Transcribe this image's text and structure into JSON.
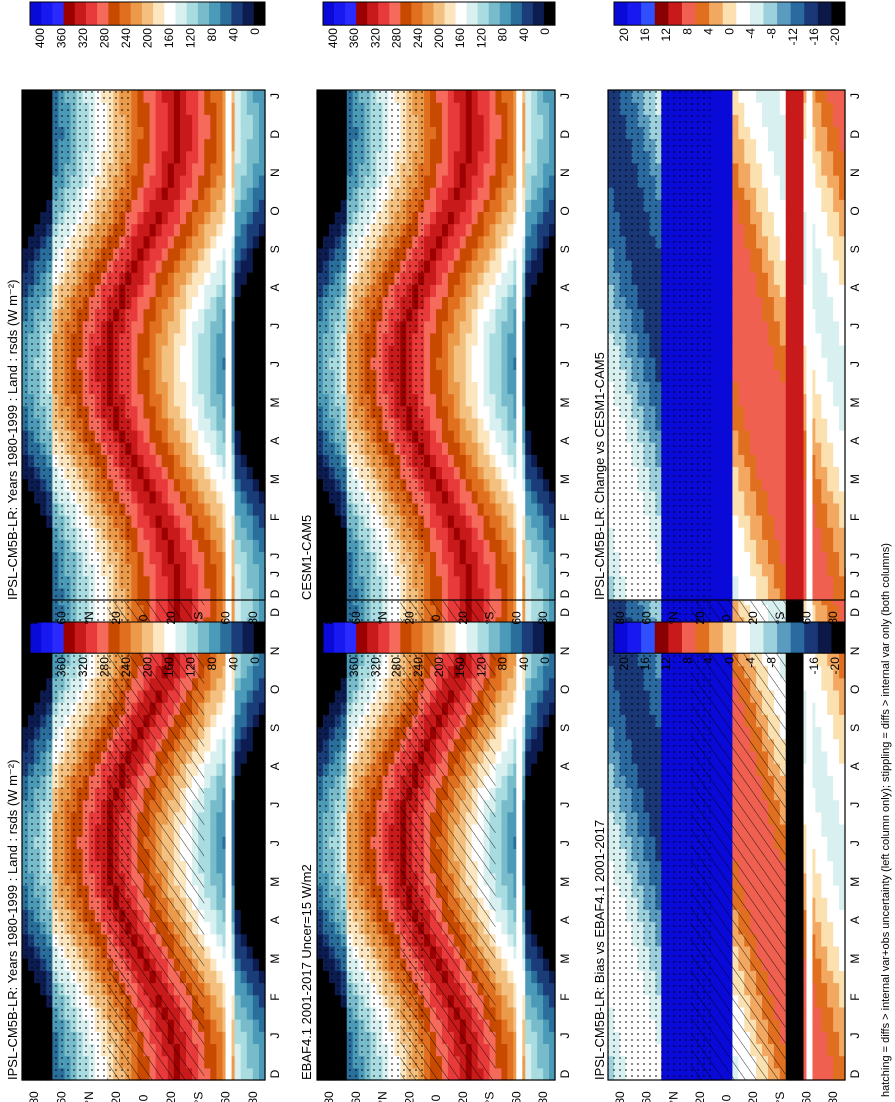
{
  "footnote": "hatching = diffs > internal var+obs uncertainty (left column only); stippling = diffs > internal var only (both columns)",
  "months": [
    "D",
    "J",
    "F",
    "M",
    "A",
    "M",
    "J",
    "J",
    "A",
    "S",
    "O",
    "N",
    "D",
    "J"
  ],
  "lat_ticks": [
    "80",
    "60",
    "°N",
    "20",
    "0",
    "20",
    "°S",
    "60",
    "80"
  ],
  "colors": {
    "abs_scale": [
      "#0a0ad8",
      "#1818f0",
      "#2a2aff",
      "#9c0000",
      "#c81a1a",
      "#e83a3a",
      "#f56a5a",
      "#c84a00",
      "#e07020",
      "#eb9a4a",
      "#f4c080",
      "#fbe6c0",
      "#ffffff",
      "#d8f0f0",
      "#a8dce0",
      "#78bccc",
      "#4a9ab8",
      "#2a6e9c",
      "#1a3c78",
      "#0c1c50",
      "#000000"
    ],
    "diff_scale": [
      "#0a0ad8",
      "#1818f0",
      "#3050ff",
      "#8a0000",
      "#c81a1a",
      "#f06050",
      "#e07020",
      "#f2a860",
      "#fbe0b0",
      "#ffffff",
      "#d8f0f0",
      "#9cd0dc",
      "#5a9cc0",
      "#2a6aa0",
      "#1a3878",
      "#0c1848",
      "#000000"
    ]
  },
  "chart_data": [
    {
      "type": "heatmap",
      "title": "IPSL-CM5B-LR: Years 1980-1999 : Land : rsds (W m⁻²)",
      "colorbar_ticks": [
        "400",
        "360",
        "320",
        "280",
        "240",
        "200",
        "160",
        "120",
        "80",
        "40",
        "0"
      ],
      "hatching": true,
      "stippling": true,
      "x": [
        "D",
        "J",
        "F",
        "M",
        "A",
        "M",
        "J",
        "J",
        "A",
        "S",
        "O",
        "N",
        "D",
        "J"
      ],
      "y": [
        "80",
        "60",
        "°N",
        "20",
        "0",
        "20",
        "°S",
        "60",
        "80"
      ]
    },
    {
      "type": "heatmap",
      "title": "IPSL-CM5B-LR: Years 1980-1999 : Land : rsds (W m⁻²)",
      "colorbar_ticks": [
        "400",
        "360",
        "320",
        "280",
        "240",
        "200",
        "160",
        "120",
        "80",
        "40",
        "0"
      ],
      "hatching": false,
      "stippling": true,
      "x": [
        "D",
        "J",
        "F",
        "M",
        "A",
        "M",
        "J",
        "J",
        "A",
        "S",
        "O",
        "N",
        "D",
        "J"
      ],
      "y": [
        "80",
        "60",
        "°N",
        "20",
        "0",
        "20",
        "°S",
        "60",
        "80"
      ]
    },
    {
      "type": "heatmap",
      "title": "EBAF4.1 2001-2017 Uncer=15 W/m2",
      "colorbar_ticks": [
        "400",
        "360",
        "320",
        "280",
        "240",
        "200",
        "160",
        "120",
        "80",
        "40",
        "0"
      ],
      "hatching": true,
      "stippling": true,
      "x": [
        "D",
        "J",
        "F",
        "M",
        "A",
        "M",
        "J",
        "J",
        "A",
        "S",
        "O",
        "N",
        "D",
        "J"
      ],
      "y": [
        "80",
        "60",
        "°N",
        "20",
        "0",
        "20",
        "°S",
        "60",
        "80"
      ]
    },
    {
      "type": "heatmap",
      "title": "CESM1-CAM5",
      "colorbar_ticks": [
        "400",
        "360",
        "320",
        "280",
        "240",
        "200",
        "160",
        "120",
        "80",
        "40",
        "0"
      ],
      "hatching": false,
      "stippling": true,
      "x": [
        "D",
        "J",
        "F",
        "M",
        "A",
        "M",
        "J",
        "J",
        "A",
        "S",
        "O",
        "N",
        "D",
        "J"
      ],
      "y": [
        "80",
        "60",
        "°N",
        "20",
        "0",
        "20",
        "°S",
        "60",
        "80"
      ]
    },
    {
      "type": "heatmap",
      "title": "IPSL-CM5B-LR: Bias vs EBAF4.1 2001-2017",
      "colorbar_ticks": [
        "20",
        "16",
        "12",
        "8",
        "4",
        "0",
        "-4",
        "-8",
        "-12",
        "-16",
        "-20"
      ],
      "hatching": true,
      "stippling": true,
      "x": [
        "D",
        "J",
        "F",
        "M",
        "A",
        "M",
        "J",
        "J",
        "A",
        "S",
        "O",
        "N",
        "D",
        "J"
      ],
      "y": [
        "80",
        "60",
        "°N",
        "20",
        "0",
        "20",
        "°S",
        "60",
        "80"
      ]
    },
    {
      "type": "heatmap",
      "title": "IPSL-CM5B-LR: Change vs CESM1-CAM5",
      "colorbar_ticks": [
        "20",
        "16",
        "12",
        "8",
        "4",
        "0",
        "-4",
        "-8",
        "-12",
        "-16",
        "-20"
      ],
      "hatching": false,
      "stippling": true,
      "x": [
        "D",
        "J",
        "F",
        "M",
        "A",
        "M",
        "J",
        "J",
        "A",
        "S",
        "O",
        "N",
        "D",
        "J"
      ],
      "y": [
        "80",
        "60",
        "°N",
        "20",
        "0",
        "20",
        "°S",
        "60",
        "80"
      ]
    }
  ]
}
